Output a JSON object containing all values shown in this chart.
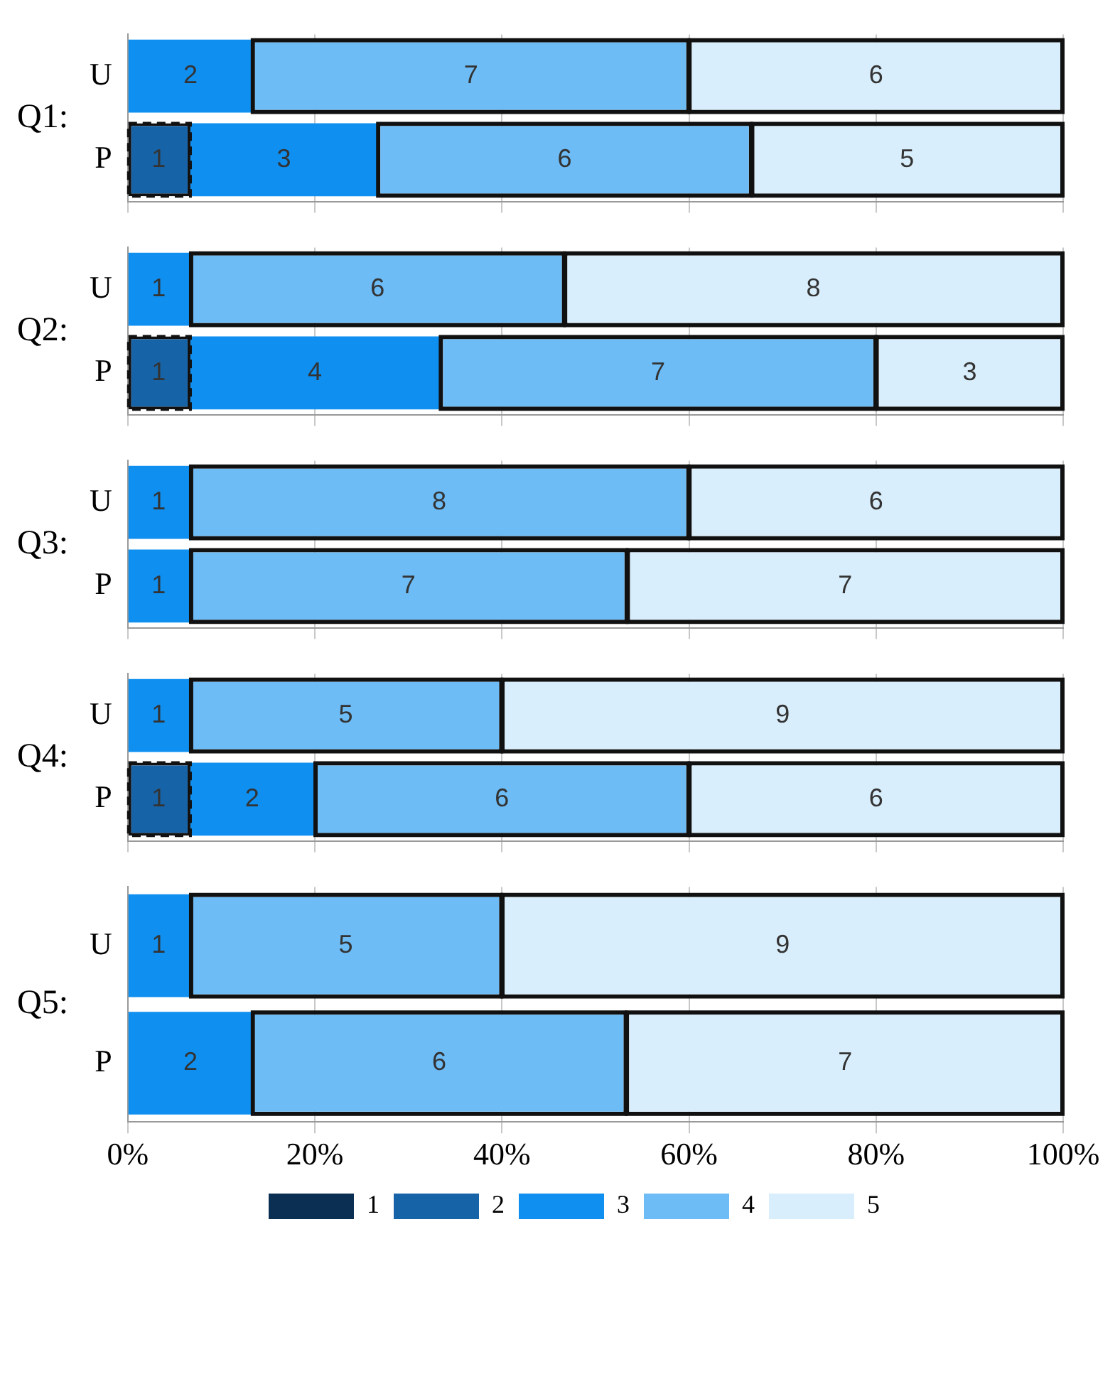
{
  "chart_data": [
    {
      "type": "bar",
      "orientation": "horizontal",
      "stacked": true,
      "ylabel": "Q1:",
      "categories": [
        "U",
        "P"
      ],
      "xlim": [
        0,
        100
      ],
      "xticks": [
        0,
        20,
        40,
        60,
        80,
        100
      ],
      "tick_labels": "y",
      "grid": "x",
      "series": [
        {
          "color": "#0b2f52",
          "line_style": "dashed",
          "values": [
            null,
            null
          ]
        },
        {
          "color": "#1763a8",
          "line_style": "dashed",
          "values": [
            null,
            6.7
          ]
        },
        {
          "color": "#0f8ff0",
          "values": [
            13.3,
            20
          ]
        },
        {
          "color": "#6dbcf6",
          "line_style": "solid",
          "values": [
            46.7,
            40
          ]
        },
        {
          "color": "#d9eefc",
          "line_style": "solid",
          "values": [
            40,
            33.3
          ]
        }
      ],
      "annotations": [
        {
          "text": "2",
          "x": 6.7,
          "y": "U"
        },
        {
          "text": "7",
          "x": 36.7,
          "y": "U"
        },
        {
          "text": "6",
          "x": 80,
          "y": "U"
        },
        {
          "text": "1",
          "x": 3.3,
          "y": "P"
        },
        {
          "text": "3",
          "x": 16.7,
          "y": "P"
        },
        {
          "text": "6",
          "x": 46.7,
          "y": "P"
        },
        {
          "text": "5",
          "x": 83.3,
          "y": "P"
        }
      ]
    },
    {
      "type": "bar",
      "orientation": "horizontal",
      "stacked": true,
      "ylabel": "Q2:",
      "categories": [
        "U",
        "P"
      ],
      "xlim": [
        0,
        100
      ],
      "xticks": [
        0,
        20,
        40,
        60,
        80,
        100
      ],
      "tick_labels": "y",
      "grid": "x",
      "series": [
        {
          "color": "#0b2f52",
          "line_style": "dashed",
          "values": [
            null,
            null
          ]
        },
        {
          "color": "#1763a8",
          "line_style": "dashed",
          "values": [
            null,
            6.7
          ]
        },
        {
          "color": "#0f8ff0",
          "values": [
            6.7,
            26.7
          ]
        },
        {
          "color": "#6dbcf6",
          "line_style": "solid",
          "values": [
            40,
            46.6
          ]
        },
        {
          "color": "#d9eefc",
          "line_style": "solid",
          "values": [
            53.3,
            20
          ]
        }
      ],
      "annotations": [
        {
          "text": "1",
          "x": 3.3,
          "y": "U"
        },
        {
          "text": "6",
          "x": 26.7,
          "y": "U"
        },
        {
          "text": "8",
          "x": 73.3,
          "y": "U"
        },
        {
          "text": "1",
          "x": 3.3,
          "y": "P"
        },
        {
          "text": "4",
          "x": 20,
          "y": "P"
        },
        {
          "text": "7",
          "x": 56.7,
          "y": "P"
        },
        {
          "text": "3",
          "x": 90,
          "y": "P"
        }
      ]
    },
    {
      "type": "bar",
      "orientation": "horizontal",
      "stacked": true,
      "ylabel": "Q3:",
      "categories": [
        "U",
        "P"
      ],
      "xlim": [
        0,
        100
      ],
      "xticks": [
        0,
        20,
        40,
        60,
        80,
        100
      ],
      "tick_labels": "y",
      "grid": "x",
      "series": [
        {
          "color": "#0b2f52",
          "line_style": "dashed",
          "values": [
            null,
            null
          ]
        },
        {
          "color": "#1763a8",
          "line_style": "dashed",
          "values": [
            null,
            null
          ]
        },
        {
          "color": "#0f8ff0",
          "values": [
            6.7,
            6.7
          ]
        },
        {
          "color": "#6dbcf6",
          "line_style": "solid",
          "values": [
            53.3,
            46.7
          ]
        },
        {
          "color": "#d9eefc",
          "line_style": "solid",
          "values": [
            40,
            46.6
          ]
        }
      ],
      "annotations": [
        {
          "text": "1",
          "x": 3.3,
          "y": "U"
        },
        {
          "text": "8",
          "x": 33.3,
          "y": "U"
        },
        {
          "text": "6",
          "x": 80,
          "y": "U"
        },
        {
          "text": "1",
          "x": 3.3,
          "y": "P"
        },
        {
          "text": "7",
          "x": 30,
          "y": "P"
        },
        {
          "text": "7",
          "x": 76.7,
          "y": "P"
        }
      ]
    },
    {
      "type": "bar",
      "orientation": "horizontal",
      "stacked": true,
      "ylabel": "Q4:",
      "categories": [
        "U",
        "P"
      ],
      "xlim": [
        0,
        100
      ],
      "xticks": [
        0,
        20,
        40,
        60,
        80,
        100
      ],
      "tick_labels": "y",
      "grid": "x",
      "series": [
        {
          "color": "#0b2f52",
          "line_style": "dashed",
          "values": [
            null,
            null
          ]
        },
        {
          "color": "#1763a8",
          "line_style": "dashed",
          "values": [
            null,
            6.7
          ]
        },
        {
          "color": "#0f8ff0",
          "values": [
            6.7,
            13.3
          ]
        },
        {
          "color": "#6dbcf6",
          "line_style": "solid",
          "values": [
            33.3,
            40
          ]
        },
        {
          "color": "#d9eefc",
          "line_style": "solid",
          "values": [
            60,
            40
          ]
        }
      ],
      "annotations": [
        {
          "text": "1",
          "x": 3.3,
          "y": "U"
        },
        {
          "text": "5",
          "x": 23.3,
          "y": "U"
        },
        {
          "text": "9",
          "x": 70,
          "y": "U"
        },
        {
          "text": "1",
          "x": 3.3,
          "y": "P"
        },
        {
          "text": "2",
          "x": 13.3,
          "y": "P"
        },
        {
          "text": "6",
          "x": 40,
          "y": "P"
        },
        {
          "text": "6",
          "x": 80,
          "y": "P"
        }
      ]
    },
    {
      "type": "bar",
      "orientation": "horizontal",
      "stacked": true,
      "ylabel": "Q5:",
      "categories": [
        "U",
        "P"
      ],
      "xlim": [
        0,
        100
      ],
      "xticks": [
        {
          "value": 0,
          "label": "0%"
        },
        {
          "value": 20,
          "label": "20%"
        },
        {
          "value": 40,
          "label": "40%"
        },
        {
          "value": 60,
          "label": "60%"
        },
        {
          "value": 80,
          "label": "80%"
        },
        {
          "value": 100,
          "label": "100%"
        }
      ],
      "grid": "x",
      "legend": "bottom",
      "series": [
        {
          "name": "1",
          "color": "#0b2f52",
          "line_style": "dashed",
          "values": [
            null,
            null
          ]
        },
        {
          "name": "2",
          "color": "#1763a8",
          "line_style": "dashed",
          "values": [
            null,
            null
          ]
        },
        {
          "name": "3",
          "color": "#0f8ff0",
          "values": [
            6.7,
            13.3
          ]
        },
        {
          "name": "4",
          "color": "#6dbcf6",
          "line_style": "solid",
          "values": [
            33.3,
            40
          ]
        },
        {
          "name": "5",
          "color": "#d9eefc",
          "line_style": "solid",
          "values": [
            60,
            46.7
          ]
        }
      ],
      "annotations": [
        {
          "text": "1",
          "x": 3.3,
          "y": "U"
        },
        {
          "text": "5",
          "x": 23.3,
          "y": "U"
        },
        {
          "text": "9",
          "x": 70,
          "y": "U"
        },
        {
          "text": "2",
          "x": 6.7,
          "y": "P"
        },
        {
          "text": "6",
          "x": 33.3,
          "y": "P"
        },
        {
          "text": "7",
          "x": 76.7,
          "y": "P"
        }
      ]
    }
  ]
}
